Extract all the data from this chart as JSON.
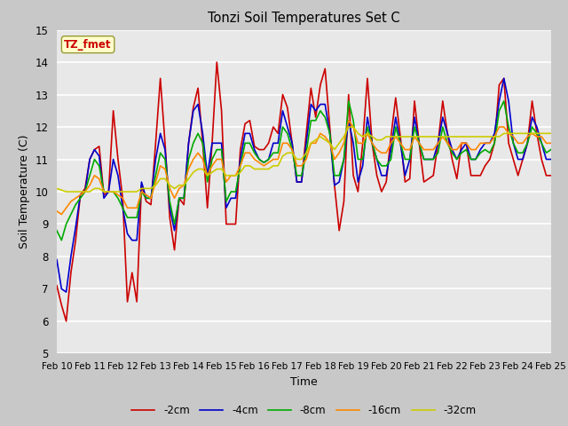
{
  "title": "Tonzi Soil Temperatures Set C",
  "xlabel": "Time",
  "ylabel": "Soil Temperature (C)",
  "ylim": [
    5.0,
    15.0
  ],
  "yticks": [
    5.0,
    6.0,
    7.0,
    8.0,
    9.0,
    10.0,
    11.0,
    12.0,
    13.0,
    14.0,
    15.0
  ],
  "xtick_labels": [
    "Feb 10",
    "Feb 11",
    "Feb 12",
    "Feb 13",
    "Feb 14",
    "Feb 15",
    "Feb 16",
    "Feb 17",
    "Feb 18",
    "Feb 19",
    "Feb 20",
    "Feb 21",
    "Feb 22",
    "Feb 23",
    "Feb 24",
    "Feb 25"
  ],
  "legend_labels": [
    "-2cm",
    "-4cm",
    "-8cm",
    "-16cm",
    "-32cm"
  ],
  "line_colors": [
    "#cc0000",
    "#0000cc",
    "#00aa00",
    "#ff8800",
    "#cccc00"
  ],
  "annotation_text": "TZ_fmet",
  "annotation_color": "#cc0000",
  "annotation_bg": "#ffffcc",
  "outer_bg": "#d8d8d8",
  "plot_bg_color": "#e8e8e8",
  "grid_color": "#ffffff",
  "series_neg2cm": [
    7.1,
    6.5,
    6.0,
    7.5,
    8.5,
    9.9,
    10.1,
    11.0,
    11.3,
    11.4,
    9.9,
    10.0,
    12.5,
    11.0,
    9.8,
    6.6,
    7.5,
    6.6,
    10.2,
    9.7,
    9.6,
    11.5,
    13.5,
    11.5,
    9.2,
    8.2,
    9.8,
    9.6,
    11.5,
    12.6,
    13.2,
    11.5,
    9.5,
    11.5,
    14.0,
    12.5,
    9.0,
    9.0,
    9.0,
    11.3,
    12.1,
    12.2,
    11.4,
    11.3,
    11.3,
    11.5,
    12.0,
    11.8,
    13.0,
    12.6,
    11.5,
    10.3,
    10.3,
    11.8,
    13.2,
    12.3,
    13.3,
    13.8,
    12.0,
    10.2,
    8.8,
    9.7,
    13.0,
    10.5,
    10.0,
    11.5,
    13.5,
    11.5,
    10.5,
    10.0,
    10.3,
    11.7,
    12.9,
    11.7,
    10.3,
    10.4,
    12.8,
    11.5,
    10.3,
    10.4,
    10.5,
    11.5,
    12.8,
    11.8,
    11.0,
    10.4,
    11.5,
    11.5,
    10.5,
    10.5,
    10.5,
    10.8,
    11.0,
    11.5,
    13.3,
    13.5,
    11.5,
    11.0,
    10.5,
    11.0,
    11.5,
    12.8,
    11.8,
    11.0,
    10.5,
    10.5
  ],
  "series_neg4cm": [
    7.9,
    7.0,
    6.9,
    8.0,
    8.9,
    9.9,
    10.0,
    11.0,
    11.3,
    11.1,
    9.8,
    10.0,
    11.0,
    10.5,
    9.5,
    8.7,
    8.5,
    8.5,
    10.3,
    9.8,
    9.8,
    11.0,
    11.8,
    11.3,
    9.5,
    8.8,
    9.8,
    9.8,
    11.5,
    12.5,
    12.7,
    11.8,
    10.5,
    11.5,
    11.5,
    11.5,
    9.5,
    9.8,
    9.8,
    11.0,
    11.8,
    11.8,
    11.3,
    11.0,
    10.9,
    11.0,
    11.5,
    11.5,
    12.5,
    12.0,
    11.5,
    10.3,
    10.3,
    11.5,
    12.7,
    12.5,
    12.7,
    12.7,
    11.8,
    10.2,
    10.3,
    11.0,
    12.2,
    11.5,
    10.3,
    10.8,
    12.3,
    11.5,
    11.0,
    10.5,
    10.5,
    11.3,
    12.3,
    11.5,
    10.5,
    11.0,
    12.3,
    11.5,
    11.0,
    11.0,
    11.0,
    11.5,
    12.3,
    11.8,
    11.3,
    11.0,
    11.3,
    11.5,
    11.0,
    11.0,
    11.3,
    11.5,
    11.5,
    11.8,
    12.8,
    13.5,
    12.8,
    11.5,
    11.0,
    11.0,
    11.5,
    12.3,
    12.0,
    11.5,
    11.0,
    11.0
  ],
  "series_neg8cm": [
    8.8,
    8.5,
    9.0,
    9.3,
    9.6,
    9.8,
    10.0,
    10.5,
    11.0,
    10.8,
    10.0,
    10.0,
    10.0,
    9.8,
    9.5,
    9.2,
    9.2,
    9.2,
    10.0,
    9.8,
    9.8,
    10.5,
    11.2,
    11.0,
    9.7,
    9.0,
    9.8,
    9.8,
    11.0,
    11.5,
    11.8,
    11.5,
    10.3,
    11.0,
    11.3,
    11.3,
    9.7,
    10.0,
    10.0,
    10.8,
    11.5,
    11.5,
    11.2,
    11.0,
    10.9,
    11.0,
    11.2,
    11.2,
    12.0,
    11.8,
    11.3,
    10.5,
    10.5,
    11.2,
    12.2,
    12.2,
    12.5,
    12.3,
    11.8,
    10.5,
    10.5,
    11.0,
    12.8,
    12.2,
    11.0,
    11.0,
    12.0,
    11.5,
    11.0,
    10.8,
    10.8,
    11.0,
    12.0,
    11.5,
    11.0,
    11.0,
    12.0,
    11.5,
    11.0,
    11.0,
    11.0,
    11.2,
    12.0,
    11.5,
    11.2,
    11.0,
    11.2,
    11.3,
    11.0,
    11.0,
    11.2,
    11.3,
    11.2,
    11.5,
    12.5,
    12.8,
    12.0,
    11.5,
    11.2,
    11.2,
    11.5,
    12.0,
    11.8,
    11.5,
    11.2,
    11.3
  ],
  "series_neg16cm": [
    9.4,
    9.3,
    9.5,
    9.7,
    9.8,
    9.9,
    10.0,
    10.2,
    10.5,
    10.4,
    10.0,
    10.0,
    10.0,
    9.9,
    9.8,
    9.5,
    9.5,
    9.5,
    10.0,
    9.9,
    9.8,
    10.3,
    10.8,
    10.7,
    10.1,
    9.8,
    10.1,
    10.2,
    10.7,
    11.0,
    11.2,
    11.0,
    10.5,
    10.8,
    11.0,
    11.0,
    10.3,
    10.5,
    10.5,
    10.8,
    11.2,
    11.2,
    11.0,
    10.9,
    10.8,
    10.9,
    11.0,
    11.0,
    11.5,
    11.5,
    11.3,
    10.8,
    10.8,
    11.0,
    11.5,
    11.5,
    11.8,
    11.7,
    11.5,
    11.0,
    11.2,
    11.5,
    12.2,
    12.0,
    11.5,
    11.5,
    11.8,
    11.5,
    11.3,
    11.2,
    11.2,
    11.5,
    11.7,
    11.5,
    11.3,
    11.3,
    11.7,
    11.5,
    11.3,
    11.3,
    11.3,
    11.5,
    11.7,
    11.5,
    11.3,
    11.3,
    11.5,
    11.5,
    11.3,
    11.3,
    11.5,
    11.5,
    11.5,
    11.7,
    12.0,
    12.0,
    11.8,
    11.7,
    11.5,
    11.5,
    11.7,
    11.8,
    11.7,
    11.7,
    11.5,
    11.5
  ],
  "series_neg32cm": [
    10.1,
    10.05,
    10.0,
    10.0,
    10.0,
    10.0,
    10.0,
    10.0,
    10.1,
    10.1,
    10.0,
    10.0,
    10.0,
    10.0,
    10.0,
    10.0,
    10.0,
    10.0,
    10.1,
    10.1,
    10.1,
    10.2,
    10.4,
    10.4,
    10.2,
    10.1,
    10.2,
    10.2,
    10.4,
    10.6,
    10.7,
    10.7,
    10.5,
    10.6,
    10.7,
    10.7,
    10.5,
    10.5,
    10.5,
    10.6,
    10.8,
    10.8,
    10.7,
    10.7,
    10.7,
    10.7,
    10.8,
    10.8,
    11.1,
    11.2,
    11.2,
    11.0,
    11.0,
    11.2,
    11.5,
    11.6,
    11.7,
    11.6,
    11.5,
    11.3,
    11.5,
    11.7,
    12.0,
    12.0,
    11.8,
    11.7,
    11.8,
    11.7,
    11.6,
    11.6,
    11.7,
    11.7,
    11.7,
    11.7,
    11.7,
    11.7,
    11.7,
    11.7,
    11.7,
    11.7,
    11.7,
    11.7,
    11.7,
    11.7,
    11.7,
    11.7,
    11.7,
    11.7,
    11.7,
    11.7,
    11.7,
    11.7,
    11.7,
    11.7,
    11.7,
    11.8,
    11.8,
    11.8,
    11.8,
    11.8,
    11.8,
    11.8,
    11.8,
    11.8,
    11.8,
    11.8
  ]
}
